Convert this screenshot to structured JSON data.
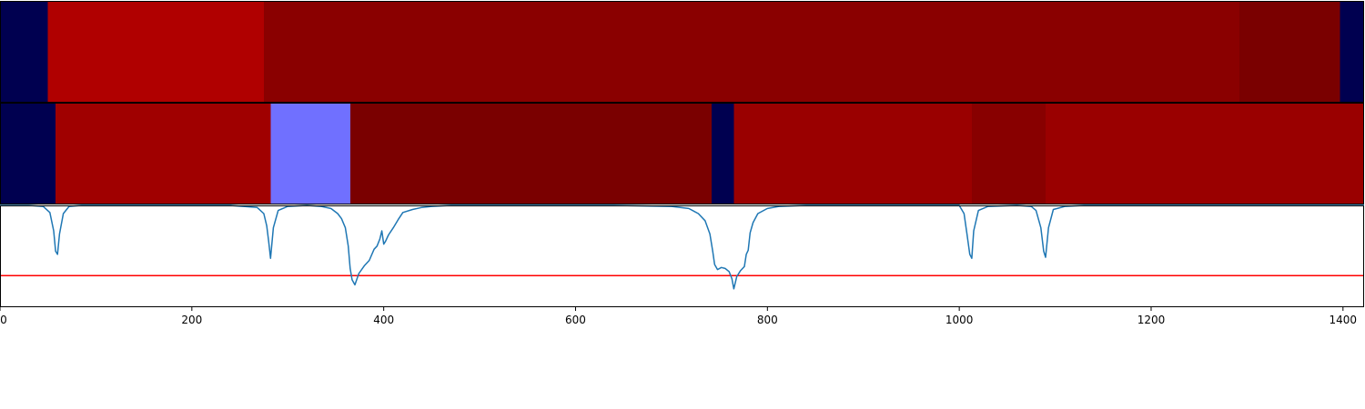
{
  "chart_data": {
    "type": "heatmap",
    "xlim": [
      0,
      1422
    ],
    "ticks": [
      0,
      200,
      400,
      600,
      800,
      1000,
      1200,
      1400
    ],
    "tick_labels": [
      "0",
      "200",
      "400",
      "600",
      "800",
      "1000",
      "1200",
      "1400"
    ],
    "grid": false,
    "segment_rows": [
      {
        "segments": [
          {
            "start": 0,
            "end": 50,
            "color": "#000050"
          },
          {
            "start": 50,
            "end": 275,
            "color": "#b00000"
          },
          {
            "start": 275,
            "end": 1292,
            "color": "#8a0000"
          },
          {
            "start": 1292,
            "end": 1397,
            "color": "#7a0000"
          },
          {
            "start": 1397,
            "end": 1422,
            "color": "#000050"
          }
        ]
      },
      {
        "segments": [
          {
            "start": 0,
            "end": 58,
            "color": "#000050"
          },
          {
            "start": 58,
            "end": 282,
            "color": "#a00000"
          },
          {
            "start": 282,
            "end": 365,
            "color": "#7070ff"
          },
          {
            "start": 365,
            "end": 742,
            "color": "#7a0000"
          },
          {
            "start": 742,
            "end": 765,
            "color": "#000050"
          },
          {
            "start": 765,
            "end": 1013,
            "color": "#9a0000"
          },
          {
            "start": 1013,
            "end": 1090,
            "color": "#880000"
          },
          {
            "start": 1090,
            "end": 1422,
            "color": "#9a0000"
          }
        ]
      }
    ],
    "line_panel": {
      "ylim": [
        0,
        1
      ],
      "line_color": "#1f77b4",
      "threshold": 0.31,
      "threshold_color": "#ff0000",
      "x": [
        0,
        30,
        45,
        52,
        56,
        58,
        60,
        62,
        66,
        72,
        85,
        240,
        268,
        275,
        278,
        280,
        282,
        285,
        290,
        300,
        320,
        335,
        345,
        352,
        356,
        360,
        363,
        365,
        367,
        370,
        374,
        380,
        385,
        390,
        393,
        396,
        398,
        400,
        402,
        405,
        410,
        415,
        420,
        430,
        440,
        450,
        470,
        500,
        520,
        640,
        700,
        718,
        728,
        735,
        740,
        743,
        745,
        748,
        752,
        756,
        760,
        763,
        765,
        768,
        772,
        776,
        778,
        780,
        782,
        785,
        790,
        800,
        812,
        840,
        880,
        1000,
        1005,
        1008,
        1011,
        1013,
        1015,
        1020,
        1030,
        1060,
        1075,
        1080,
        1085,
        1088,
        1090,
        1093,
        1098,
        1110,
        1130,
        1422
      ],
      "y": [
        1.0,
        1.0,
        0.99,
        0.93,
        0.75,
        0.55,
        0.52,
        0.72,
        0.92,
        0.99,
        1.0,
        1.0,
        0.98,
        0.92,
        0.8,
        0.65,
        0.48,
        0.78,
        0.95,
        0.99,
        1.0,
        0.99,
        0.97,
        0.92,
        0.87,
        0.78,
        0.6,
        0.38,
        0.27,
        0.22,
        0.33,
        0.41,
        0.46,
        0.57,
        0.6,
        0.67,
        0.75,
        0.62,
        0.65,
        0.71,
        0.78,
        0.86,
        0.93,
        0.96,
        0.98,
        0.99,
        1.0,
        1.0,
        1.0,
        1.0,
        0.99,
        0.97,
        0.92,
        0.85,
        0.72,
        0.55,
        0.42,
        0.37,
        0.39,
        0.38,
        0.35,
        0.28,
        0.18,
        0.3,
        0.36,
        0.4,
        0.52,
        0.56,
        0.73,
        0.83,
        0.92,
        0.97,
        0.99,
        1.0,
        1.0,
        1.0,
        0.92,
        0.72,
        0.52,
        0.48,
        0.75,
        0.95,
        0.99,
        1.0,
        0.99,
        0.95,
        0.78,
        0.55,
        0.49,
        0.78,
        0.96,
        0.99,
        1.0,
        1.0
      ]
    }
  }
}
